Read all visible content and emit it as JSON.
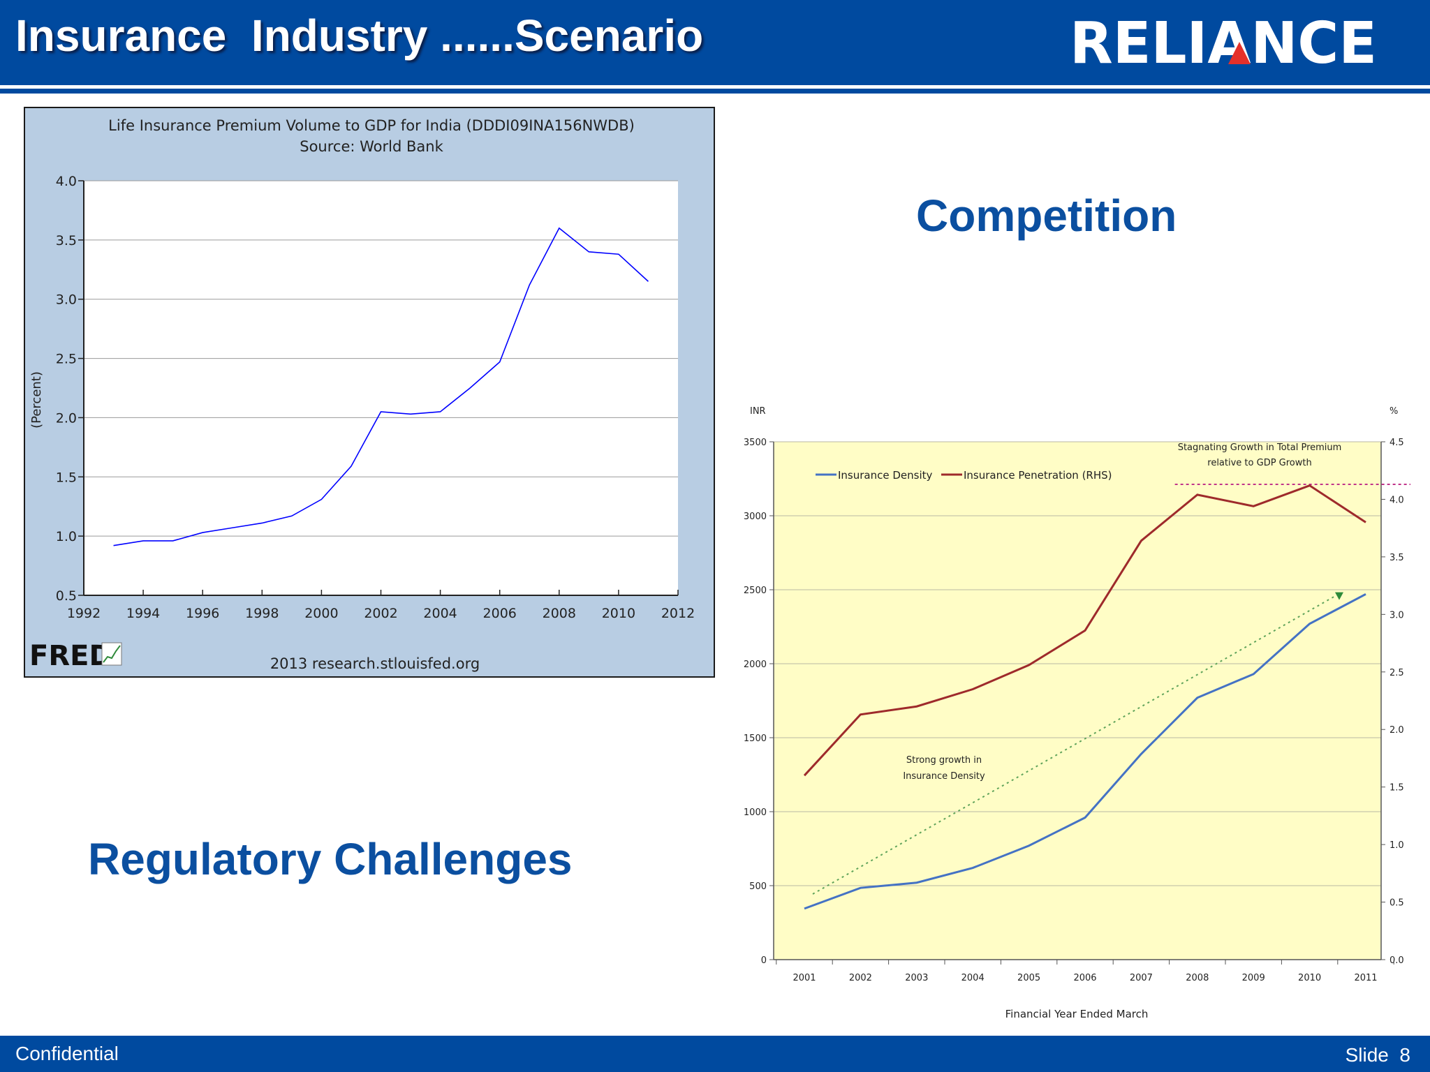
{
  "slide": {
    "title": "Insurance  Industry ......Scenario",
    "logo_text": "RELIANCE",
    "competition": "Competition",
    "regulatory": "Regulatory Challenges",
    "footer_left": "Confidential",
    "footer_slide_label": "Slide",
    "footer_slide_number": "8"
  },
  "colors": {
    "brand": "#004a9f",
    "heading": "#0b4fa0",
    "density": "#4472c4",
    "penetration": "#9e2a2b",
    "fred_line": "#0000ff"
  },
  "chart_data": [
    {
      "type": "line",
      "title": "Life Insurance Premium Volume to GDP for India (DDDI09INA156NWDB)",
      "subtitle": "Source: World Bank",
      "ylabel": "(Percent)",
      "xlabel": "",
      "xlim": [
        1992,
        2012
      ],
      "ylim": [
        0.5,
        4.0
      ],
      "xticks": [
        1992,
        1994,
        1996,
        1998,
        2000,
        2002,
        2004,
        2006,
        2008,
        2010,
        2012
      ],
      "yticks": [
        0.5,
        1.0,
        1.5,
        2.0,
        2.5,
        3.0,
        3.5,
        4.0
      ],
      "grid": true,
      "series": [
        {
          "x": [
            1993,
            1994,
            1995,
            1996,
            1997,
            1998,
            1999,
            2000,
            2001,
            2002,
            2003,
            2004,
            2005,
            2006,
            2007,
            2008,
            2009,
            2010,
            2011
          ],
          "values": [
            0.92,
            0.96,
            0.96,
            1.03,
            1.07,
            1.11,
            1.17,
            1.31,
            1.59,
            2.05,
            2.03,
            2.05,
            2.25,
            2.47,
            3.12,
            3.6,
            3.4,
            3.38,
            3.15
          ]
        }
      ],
      "footer_logo": "FRED",
      "footer_source": "2013 research.stlouisfed.org"
    },
    {
      "type": "line",
      "title": "",
      "xlabel": "Financial Year Ended March",
      "ylabel_left": "INR",
      "ylabel_right": "%",
      "categories": [
        "2001",
        "2002",
        "2003",
        "2004",
        "2005",
        "2006",
        "2007",
        "2008",
        "2009",
        "2010",
        "2011"
      ],
      "ylim_left": [
        0,
        3500
      ],
      "ylim_right": [
        0.0,
        4.5
      ],
      "yticks_left": [
        0,
        500,
        1000,
        1500,
        2000,
        2500,
        3000,
        3500
      ],
      "yticks_right": [
        "0.0",
        "0.5",
        "1.0",
        "1.5",
        "2.0",
        "2.5",
        "3.0",
        "3.5",
        "4.0",
        "4.5"
      ],
      "grid": true,
      "legend_position": "top-left",
      "series": [
        {
          "name": "Insurance Density",
          "axis": "left",
          "values": [
            345,
            485,
            520,
            620,
            770,
            960,
            1390,
            1770,
            1930,
            2270,
            2470
          ]
        },
        {
          "name": "Insurance Penetration (RHS)",
          "axis": "right",
          "values": [
            1.6,
            2.13,
            2.2,
            2.35,
            2.56,
            2.86,
            3.64,
            4.04,
            3.94,
            4.12,
            3.8
          ]
        }
      ],
      "trend_density": {
        "from": [
          2001,
          0.57
        ],
        "to": [
          2011,
          3.18
        ]
      },
      "reference_line_level": 4.13,
      "annotations": {
        "stagnating": [
          "Stagnating Growth  in Total Premium",
          "relative to GDP Growth"
        ],
        "strong": [
          "Strong growth  in",
          "Insurance Density"
        ]
      }
    }
  ]
}
